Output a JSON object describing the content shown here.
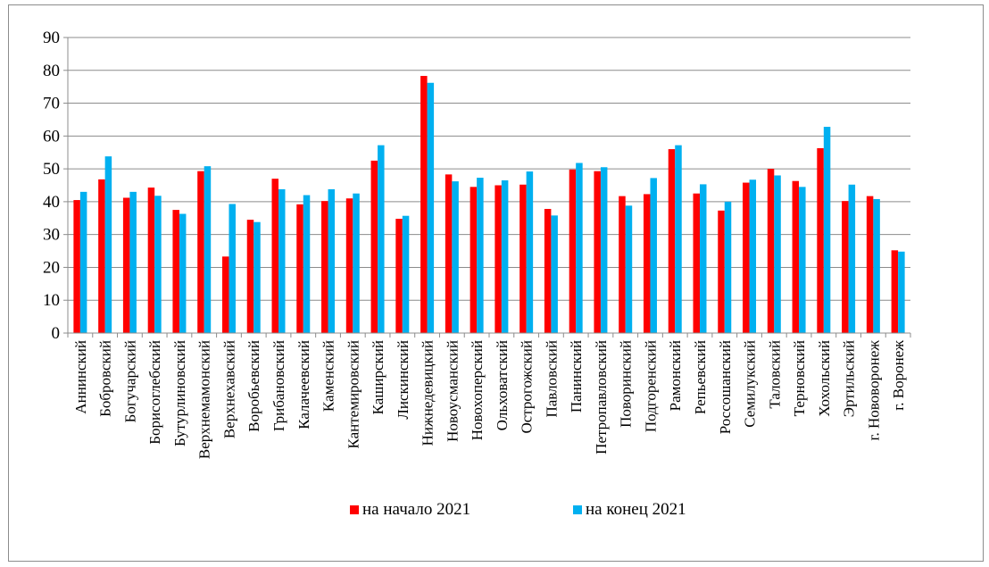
{
  "chart_data": {
    "type": "bar",
    "ylim": [
      0,
      90
    ],
    "yticks": [
      "0",
      "10",
      "20",
      "30",
      "40",
      "50",
      "60",
      "70",
      "80",
      "90"
    ],
    "grid": true,
    "legend_position": "bottom",
    "categories": [
      "Аннинский",
      "Бобровский",
      "Богучарский",
      "Борисоглебский",
      "Бутурлиновский",
      "Верхнемамонский",
      "Верхнехавский",
      "Воробьевский",
      "Грибановский",
      "Калачеевский",
      "Каменский",
      "Кантемировский",
      "Каширский",
      "Лискинский",
      "Нижнедевицкий",
      "Новоусманский",
      "Новохоперский",
      "Ольховатский",
      "Острогожский",
      "Павловский",
      "Панинский",
      "Петропавловский",
      "Поворинский",
      "Подгоренский",
      "Рамонский",
      "Репьевский",
      "Россошанский",
      "Семилукский",
      "Таловский",
      "Терновский",
      "Хохольский",
      "Эртильский",
      "г. Нововоронеж",
      "г. Воронеж"
    ],
    "series": [
      {
        "name": "на начало 2021",
        "color": "#ff0000",
        "values": [
          40.5,
          46.8,
          41.2,
          44.3,
          37.5,
          49.3,
          23.3,
          34.5,
          47.0,
          39.2,
          40.2,
          41.0,
          52.5,
          34.8,
          78.3,
          48.3,
          44.5,
          45.0,
          45.2,
          37.8,
          49.8,
          49.3,
          41.7,
          42.3,
          56.0,
          42.5,
          37.3,
          45.8,
          50.0,
          46.3,
          56.3,
          40.2,
          41.7,
          25.2
        ]
      },
      {
        "name": "на конец 2021",
        "color": "#00b0f0",
        "values": [
          43.0,
          53.8,
          43.0,
          41.8,
          36.3,
          50.8,
          39.3,
          33.8,
          43.8,
          42.0,
          43.8,
          42.5,
          57.2,
          35.7,
          76.2,
          46.2,
          47.3,
          46.5,
          49.2,
          35.8,
          51.8,
          50.5,
          38.8,
          47.2,
          57.2,
          45.3,
          40.0,
          46.7,
          48.0,
          44.5,
          62.8,
          45.2,
          40.8,
          24.8
        ]
      }
    ]
  }
}
